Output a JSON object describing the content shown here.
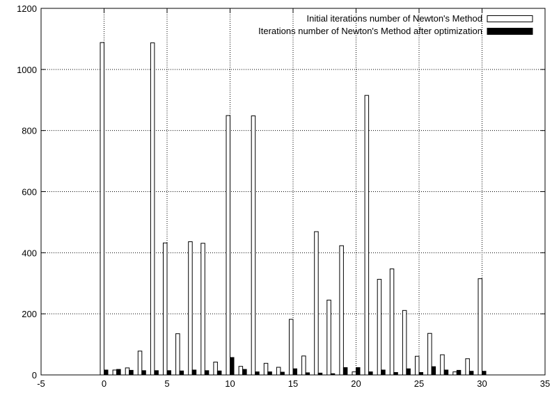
{
  "chart_data": {
    "type": "bar",
    "title": "",
    "xlabel": "",
    "ylabel": "",
    "xlim": [
      -5,
      35
    ],
    "ylim": [
      0,
      1200
    ],
    "x_ticks": [
      -5,
      0,
      5,
      10,
      15,
      20,
      25,
      30,
      35
    ],
    "y_ticks": [
      0,
      200,
      400,
      600,
      800,
      1000,
      1200
    ],
    "x_tick_labels": [
      "-5",
      "0",
      "5",
      "10",
      "15",
      "20",
      "25",
      "30",
      "35"
    ],
    "y_tick_labels": [
      "0",
      "200",
      "400",
      "600",
      "800",
      "1000",
      "1200"
    ],
    "grid": true,
    "legend_position": "top-right",
    "x": [
      0,
      1,
      2,
      3,
      4,
      5,
      6,
      7,
      8,
      9,
      10,
      11,
      12,
      13,
      14,
      15,
      16,
      17,
      18,
      19,
      20,
      21,
      22,
      23,
      24,
      25,
      26,
      27,
      28,
      29,
      30
    ],
    "series": [
      {
        "name": "Initial iterations number of Newton's Method",
        "color": "#ffffff",
        "values": [
          1088,
          16,
          23,
          78,
          1087,
          432,
          135,
          436,
          431,
          42,
          849,
          28,
          848,
          38,
          25,
          182,
          62,
          469,
          245,
          423,
          10,
          915,
          313,
          347,
          211,
          61,
          136,
          66,
          10,
          53,
          315
        ]
      },
      {
        "name": "Iterations number of Newton's Method after optimization",
        "color": "#000000",
        "values": [
          16,
          18,
          15,
          14,
          14,
          14,
          13,
          16,
          14,
          13,
          57,
          18,
          10,
          10,
          9,
          20,
          7,
          6,
          4,
          24,
          24,
          10,
          16,
          8,
          20,
          8,
          27,
          16,
          15,
          12,
          12
        ]
      }
    ]
  }
}
